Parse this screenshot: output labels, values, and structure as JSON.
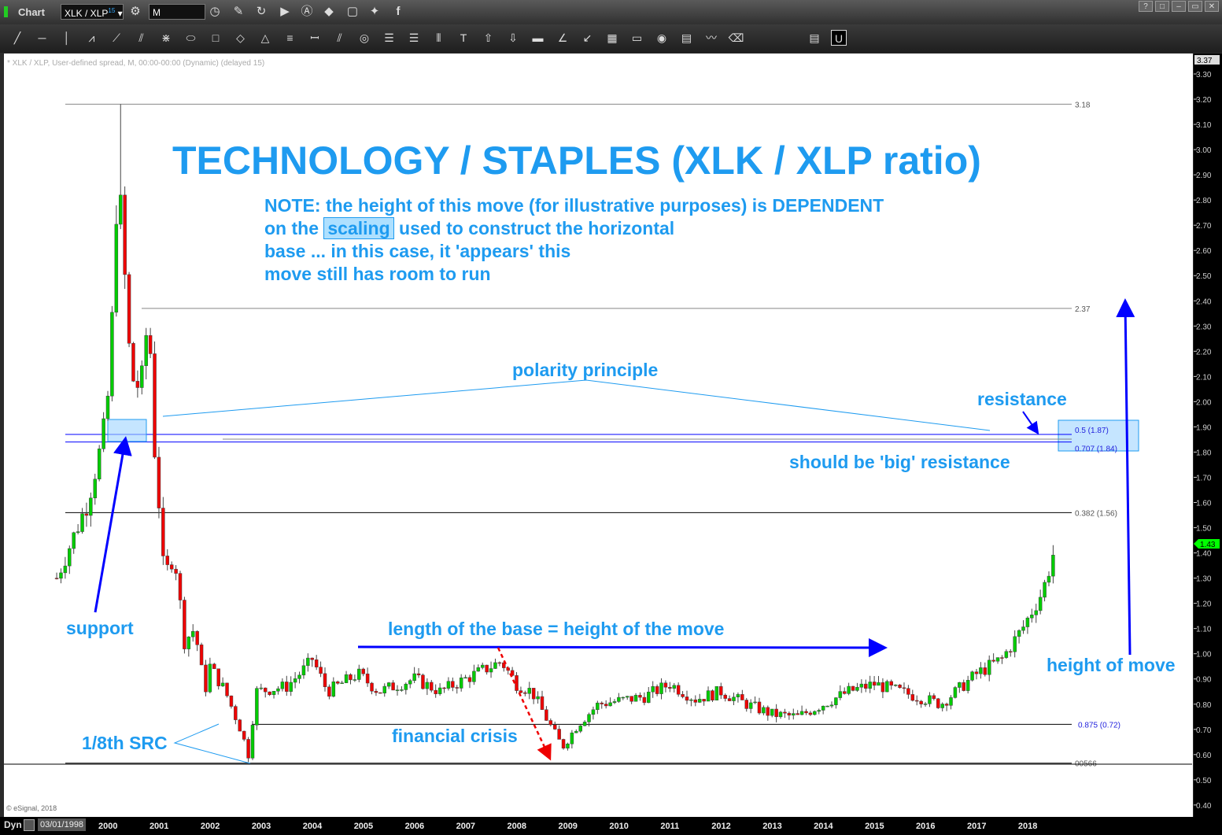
{
  "window": {
    "title": "Chart",
    "symbol": "XLK / XLP",
    "symbol_sup": "15",
    "interval": "M",
    "win_buttons": [
      "?",
      "□",
      "–",
      "▭",
      "✕"
    ]
  },
  "toolbar_icons": [
    "line",
    "horizontal-line",
    "vertical-line",
    "polyline",
    "fan",
    "pitchfork",
    "gann",
    "ellipse",
    "rectangle",
    "diamond",
    "triangle",
    "parallel-lines",
    "cycles",
    "channel",
    "circles",
    "fib-retracement",
    "fib-extension",
    "bars",
    "text",
    "arrow-up",
    "arrow-down",
    "marker",
    "angle",
    "arrows",
    "grid",
    "moe",
    "eye",
    "pti",
    "wave",
    "eraser",
    "comment",
    "magnet"
  ],
  "chart_header": "* XLK / XLP, User-defined spread, M, 00:00-00:00 (Dynamic) (delayed 15)",
  "copyright": "© eSignal, 2018",
  "bottom": {
    "mode": "Dyn",
    "start_date": "03/01/1998"
  },
  "annotations": {
    "title": "TECHNOLOGY / STAPLES (XLK / XLP ratio)",
    "note1": "NOTE: the height of this move (for illustrative purposes) is DEPENDENT",
    "note2a": "on the",
    "note2b": "scaling",
    "note2c": "used to construct the horizontal",
    "note3": "base ... in this case, it 'appears' this",
    "note4": "move still has room to run",
    "polarity": "polarity principle",
    "resistance": "resistance",
    "big_resistance": "should be 'big' resistance",
    "support": "support",
    "base": "length of the base = height of the move",
    "height": "height of move",
    "src": "1/8th SRC",
    "crisis": "financial crisis"
  },
  "colors": {
    "text_accent": "#1e9bf0",
    "arrow": "#0000ff",
    "up": "#00cc00",
    "down": "#ee0000",
    "last_price": "#00ff00"
  },
  "chart_data": {
    "type": "candlestick",
    "title": "XLK / XLP",
    "last_price": "1.43",
    "y_ticks": [
      "3.30",
      "3.20",
      "3.10",
      "3.00",
      "2.90",
      "2.80",
      "2.70",
      "2.60",
      "2.50",
      "2.40",
      "2.30",
      "2.20",
      "2.10",
      "2.00",
      "1.90",
      "1.80",
      "1.70",
      "1.60",
      "1.50",
      "1.40",
      "1.30",
      "1.20",
      "1.10",
      "1.00",
      "0.90",
      "0.80",
      "0.70",
      "0.60",
      "0.50",
      "0.40"
    ],
    "ylim": [
      0.4,
      3.3
    ],
    "x_ticks": [
      "2000",
      "2001",
      "2002",
      "2003",
      "2004",
      "2005",
      "2006",
      "2007",
      "2008",
      "2009",
      "2010",
      "2011",
      "2012",
      "2013",
      "2014",
      "2015",
      "2016",
      "2017",
      "2018"
    ],
    "levels": [
      {
        "value": 3.18,
        "label": "3.18"
      },
      {
        "value": 2.37,
        "label": "2.37"
      },
      {
        "value": 1.87,
        "label": "0.5 (1.87)"
      },
      {
        "value": 1.84,
        "label": "0.707 (1.84)"
      },
      {
        "value": 1.56,
        "label": "0.382 (1.56)"
      },
      {
        "value": 0.72,
        "label": "0.875 (0.72)"
      },
      {
        "value": 0.566,
        "label": "00566"
      }
    ],
    "path": [
      [
        1999.0,
        1.3
      ],
      [
        1999.3,
        1.45
      ],
      [
        1999.6,
        1.6
      ],
      [
        1999.9,
        1.85
      ],
      [
        2000.05,
        2.1
      ],
      [
        2000.15,
        2.75
      ],
      [
        2000.22,
        2.85
      ],
      [
        2000.3,
        2.6
      ],
      [
        2000.45,
        2.1
      ],
      [
        2000.65,
        2.05
      ],
      [
        2000.8,
        2.37
      ],
      [
        2000.9,
        1.85
      ],
      [
        2001.0,
        1.6
      ],
      [
        2001.1,
        1.3
      ],
      [
        2001.3,
        1.4
      ],
      [
        2001.5,
        1.05
      ],
      [
        2001.7,
        1.1
      ],
      [
        2001.9,
        0.85
      ],
      [
        2002.0,
        0.95
      ],
      [
        2002.3,
        0.85
      ],
      [
        2002.6,
        0.7
      ],
      [
        2002.75,
        0.6
      ],
      [
        2002.9,
        0.85
      ],
      [
        2003.5,
        0.87
      ],
      [
        2003.9,
        0.95
      ],
      [
        2004.0,
        0.98
      ],
      [
        2004.3,
        0.85
      ],
      [
        2004.9,
        0.92
      ],
      [
        2005.3,
        0.85
      ],
      [
        2006.0,
        0.9
      ],
      [
        2006.5,
        0.85
      ],
      [
        2007.0,
        0.9
      ],
      [
        2007.7,
        0.97
      ],
      [
        2008.0,
        0.88
      ],
      [
        2008.3,
        0.85
      ],
      [
        2008.7,
        0.7
      ],
      [
        2008.9,
        0.63
      ],
      [
        2009.2,
        0.72
      ],
      [
        2009.6,
        0.8
      ],
      [
        2010.5,
        0.83
      ],
      [
        2011.0,
        0.88
      ],
      [
        2011.5,
        0.82
      ],
      [
        2012.0,
        0.85
      ],
      [
        2012.5,
        0.8
      ],
      [
        2013.0,
        0.76
      ],
      [
        2013.5,
        0.75
      ],
      [
        2014.0,
        0.8
      ],
      [
        2014.5,
        0.85
      ],
      [
        2015.0,
        0.88
      ],
      [
        2015.5,
        0.85
      ],
      [
        2016.0,
        0.82
      ],
      [
        2016.3,
        0.8
      ],
      [
        2016.6,
        0.85
      ],
      [
        2017.0,
        0.92
      ],
      [
        2017.5,
        0.98
      ],
      [
        2017.9,
        1.1
      ],
      [
        2018.3,
        1.25
      ],
      [
        2018.55,
        1.43
      ]
    ]
  }
}
